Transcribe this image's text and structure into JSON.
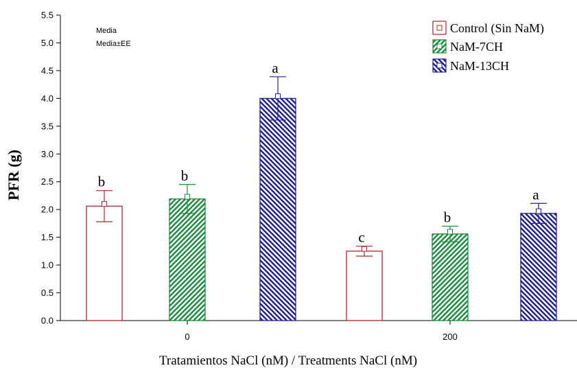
{
  "chart_data": {
    "type": "bar",
    "categories": [
      "0",
      "200"
    ],
    "series": [
      {
        "name": "Control (Sin NaM)",
        "values": [
          2.06,
          1.25
        ],
        "errors": [
          0.28,
          0.09
        ],
        "letters": [
          "b",
          "c"
        ],
        "color": "#a52a2a",
        "pattern": "none"
      },
      {
        "name": "NaM-7CH",
        "values": [
          2.19,
          1.56
        ],
        "errors": [
          0.26,
          0.14
        ],
        "letters": [
          "b",
          "b"
        ],
        "color": "#1b8a3c",
        "pattern": "diagonal-up"
      },
      {
        "name": "NaM-13CH",
        "values": [
          4.0,
          1.93
        ],
        "errors": [
          0.39,
          0.18
        ],
        "letters": [
          "a",
          "a"
        ],
        "color": "#1f1f8f",
        "pattern": "diagonal-down"
      }
    ],
    "xlabel": "Tratamientos NaCl (nM) / Treatments NaCl (nM)",
    "ylabel": "PFR (g)",
    "ylim": [
      0,
      5.5
    ],
    "yticks": [
      "0.0",
      "0.5",
      "1.0",
      "1.5",
      "2.0",
      "2.5",
      "3.0",
      "3.5",
      "4.0",
      "4.5",
      "5.0",
      "5.5"
    ],
    "stats_legend": [
      "Media",
      "Media±EE"
    ],
    "legend_position": "top-right",
    "grid": false
  }
}
